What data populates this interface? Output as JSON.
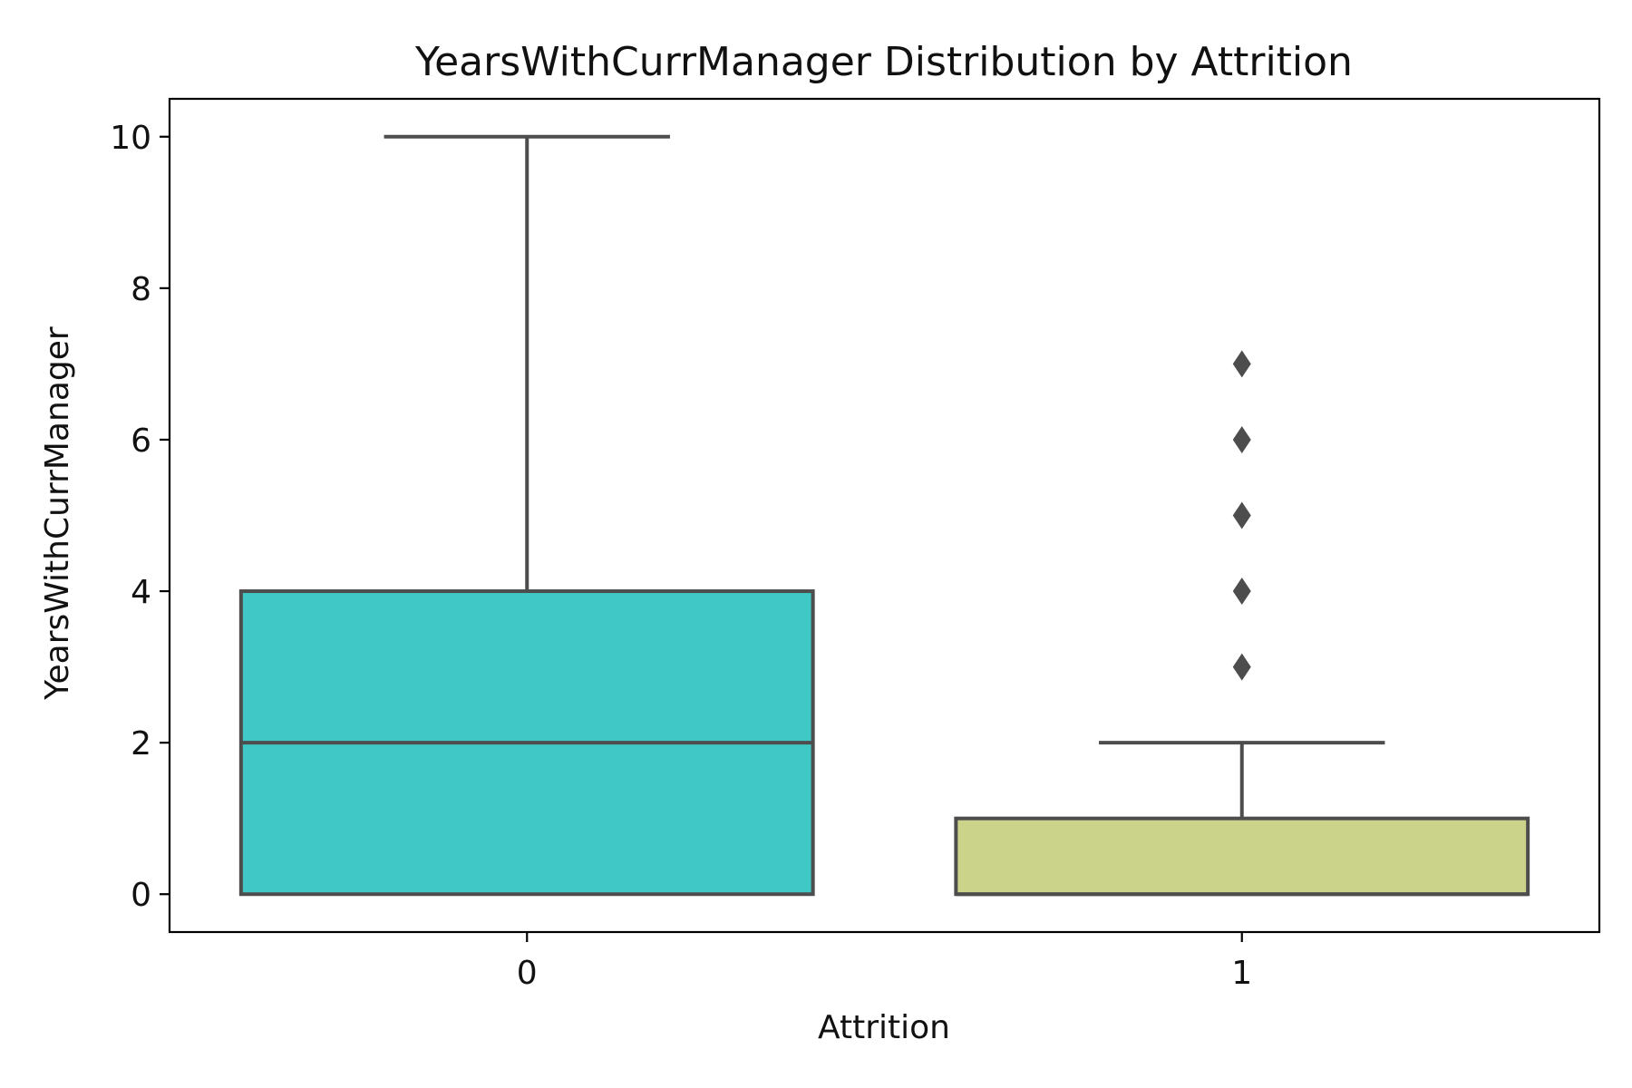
{
  "chart_data": {
    "type": "box",
    "title": "YearsWithCurrManager Distribution by Attrition",
    "xlabel": "Attrition",
    "ylabel": "YearsWithCurrManager",
    "categories": [
      "0",
      "1"
    ],
    "ylim": [
      -0.5,
      10.5
    ],
    "yticks": [
      0,
      2,
      4,
      6,
      8,
      10
    ],
    "ytick_labels": [
      "0",
      "2",
      "4",
      "6",
      "8",
      "10"
    ],
    "grid": false,
    "boxes": [
      {
        "category": "0",
        "whisker_low": 0,
        "q1": 0,
        "median": 2,
        "q3": 4,
        "whisker_high": 10,
        "outliers": [],
        "color": "#40c8c6"
      },
      {
        "category": "1",
        "whisker_low": 0,
        "q1": 0,
        "median": 0,
        "q3": 1,
        "whisker_high": 2,
        "outliers": [
          3,
          4,
          5,
          6,
          7
        ],
        "color": "#cbd38b"
      }
    ],
    "line_color": "#4d4d4d"
  }
}
